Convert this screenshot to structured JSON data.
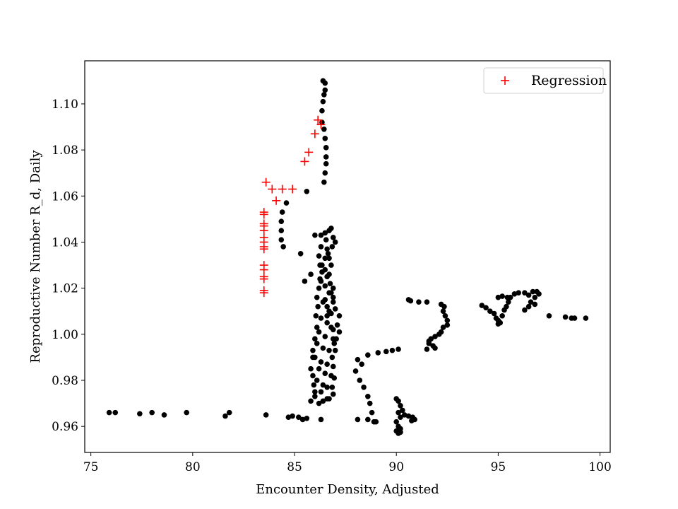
{
  "chart_data": {
    "type": "scatter",
    "title": "",
    "xlabel": "Encounter Density, Adjusted",
    "ylabel": "Reproductive Number R_d, Daily",
    "xlim": [
      74.7,
      100.5
    ],
    "ylim": [
      0.9487,
      1.1187
    ],
    "xticks": [
      75,
      80,
      85,
      90,
      95,
      100
    ],
    "yticks": [
      0.96,
      0.98,
      1.0,
      1.02,
      1.04,
      1.06,
      1.08,
      1.1
    ],
    "grid": false,
    "legend_position": "top-right",
    "series": [
      {
        "name": "Regression",
        "marker": "plus",
        "color": "#ff0000",
        "points": [
          [
            83.5,
            1.018
          ],
          [
            83.5,
            1.019
          ],
          [
            83.5,
            1.024
          ],
          [
            83.5,
            1.025
          ],
          [
            83.5,
            1.028
          ],
          [
            83.5,
            1.03
          ],
          [
            83.5,
            1.037
          ],
          [
            83.5,
            1.038
          ],
          [
            83.5,
            1.04
          ],
          [
            83.5,
            1.042
          ],
          [
            83.5,
            1.045
          ],
          [
            83.5,
            1.047
          ],
          [
            83.5,
            1.048
          ],
          [
            83.5,
            1.052
          ],
          [
            83.5,
            1.053
          ],
          [
            83.6,
            1.066
          ],
          [
            83.9,
            1.063
          ],
          [
            84.1,
            1.058
          ],
          [
            84.4,
            1.063
          ],
          [
            84.9,
            1.063
          ],
          [
            85.5,
            1.075
          ],
          [
            85.7,
            1.079
          ],
          [
            86.0,
            1.087
          ],
          [
            86.15,
            1.093
          ],
          [
            86.3,
            1.091
          ]
        ]
      },
      {
        "name": "",
        "marker": "dot",
        "color": "#000000",
        "points": [
          [
            75.9,
            0.966
          ],
          [
            76.2,
            0.966
          ],
          [
            77.4,
            0.9655
          ],
          [
            78.0,
            0.966
          ],
          [
            78.6,
            0.965
          ],
          [
            79.7,
            0.966
          ],
          [
            81.6,
            0.9645
          ],
          [
            81.8,
            0.966
          ],
          [
            83.6,
            0.965
          ],
          [
            84.7,
            0.964
          ],
          [
            84.9,
            0.9645
          ],
          [
            85.2,
            0.964
          ],
          [
            85.4,
            0.963
          ],
          [
            85.6,
            0.9635
          ],
          [
            86.3,
            0.963
          ],
          [
            86.4,
            1.11
          ],
          [
            86.5,
            1.109
          ],
          [
            86.5,
            1.106
          ],
          [
            86.45,
            1.104
          ],
          [
            86.4,
            1.101
          ],
          [
            86.35,
            1.097
          ],
          [
            86.35,
            1.092
          ],
          [
            86.45,
            1.089
          ],
          [
            86.5,
            1.085
          ],
          [
            86.55,
            1.081
          ],
          [
            86.55,
            1.077
          ],
          [
            86.55,
            1.074
          ],
          [
            86.5,
            1.07
          ],
          [
            86.45,
            1.066
          ],
          [
            85.6,
            1.062
          ],
          [
            84.6,
            1.057
          ],
          [
            84.4,
            1.053
          ],
          [
            84.35,
            1.049
          ],
          [
            84.35,
            1.045
          ],
          [
            84.35,
            1.041
          ],
          [
            84.45,
            1.038
          ],
          [
            85.3,
            1.035
          ],
          [
            85.5,
            1.023
          ],
          [
            85.8,
            1.026
          ],
          [
            86.0,
            1.043
          ],
          [
            86.3,
            1.043
          ],
          [
            86.5,
            1.044
          ],
          [
            86.7,
            1.045
          ],
          [
            86.8,
            1.046
          ],
          [
            86.55,
            1.041
          ],
          [
            86.6,
            1.037
          ],
          [
            86.5,
            1.033
          ],
          [
            86.65,
            1.035
          ],
          [
            86.35,
            1.03
          ],
          [
            86.5,
            1.028
          ],
          [
            86.25,
            1.024
          ],
          [
            86.6,
            1.025
          ],
          [
            86.5,
            1.021
          ],
          [
            86.7,
            1.018
          ],
          [
            86.4,
            1.014
          ],
          [
            86.6,
            1.012
          ],
          [
            86.8,
            1.009
          ],
          [
            86.3,
            1.007
          ],
          [
            86.6,
            1.005
          ],
          [
            86.8,
            1.003
          ],
          [
            86.2,
            1.001
          ],
          [
            86.5,
            0.999
          ],
          [
            86.9,
            0.998
          ],
          [
            86.1,
            0.996
          ],
          [
            86.4,
            0.994
          ],
          [
            86.7,
            0.993
          ],
          [
            86.0,
            0.99
          ],
          [
            86.3,
            0.988
          ],
          [
            86.6,
            0.987
          ],
          [
            86.2,
            0.985
          ],
          [
            86.5,
            0.983
          ],
          [
            86.8,
            0.982
          ],
          [
            86.1,
            0.98
          ],
          [
            86.4,
            0.978
          ],
          [
            86.6,
            0.977
          ],
          [
            86.3,
            0.975
          ],
          [
            86.0,
            0.973
          ],
          [
            86.6,
            0.972
          ],
          [
            86.4,
            0.971
          ],
          [
            86.2,
            0.97
          ],
          [
            85.9,
            0.993
          ],
          [
            86.0,
            0.998
          ],
          [
            86.1,
            1.003
          ],
          [
            86.05,
            1.008
          ],
          [
            86.15,
            1.012
          ],
          [
            86.1,
            1.016
          ],
          [
            86.2,
            1.02
          ],
          [
            86.3,
            1.023
          ],
          [
            86.35,
            1.027
          ],
          [
            86.25,
            1.03
          ],
          [
            86.2,
            1.034
          ],
          [
            86.3,
            1.038
          ],
          [
            85.9,
            0.99
          ],
          [
            85.8,
            0.985
          ],
          [
            85.9,
            0.982
          ],
          [
            85.95,
            0.978
          ],
          [
            86.0,
            0.975
          ],
          [
            85.8,
            0.971
          ],
          [
            86.9,
            1.014
          ],
          [
            87.0,
            1.011
          ],
          [
            87.2,
            1.008
          ],
          [
            87.1,
            1.004
          ],
          [
            86.9,
            1.002
          ],
          [
            87.2,
            1.001
          ],
          [
            87.05,
            0.998
          ],
          [
            86.95,
            0.996
          ],
          [
            87.0,
            0.993
          ],
          [
            86.85,
            0.99
          ],
          [
            86.9,
            0.986
          ],
          [
            86.95,
            0.981
          ],
          [
            86.85,
            0.977
          ],
          [
            86.9,
            0.974
          ],
          [
            86.7,
            0.972
          ],
          [
            86.8,
            1.018
          ],
          [
            86.75,
            1.022
          ],
          [
            86.9,
            1.016
          ],
          [
            86.7,
            1.026
          ],
          [
            86.8,
            1.03
          ],
          [
            86.7,
            1.033
          ],
          [
            86.85,
            1.038
          ],
          [
            86.9,
            1.042
          ],
          [
            87.0,
            1.04
          ],
          [
            86.6,
            1.008
          ],
          [
            86.7,
            1.01
          ],
          [
            86.5,
            1.015
          ],
          [
            86.9,
            1.02
          ],
          [
            88.1,
            0.989
          ],
          [
            88.3,
            0.987
          ],
          [
            88.0,
            0.984
          ],
          [
            88.2,
            0.98
          ],
          [
            88.4,
            0.977
          ],
          [
            88.6,
            0.973
          ],
          [
            88.7,
            0.97
          ],
          [
            88.8,
            0.966
          ],
          [
            88.6,
            0.963
          ],
          [
            88.1,
            0.963
          ],
          [
            89.0,
            0.962
          ],
          [
            88.9,
            0.962
          ],
          [
            88.6,
            0.991
          ],
          [
            89.1,
            0.992
          ],
          [
            89.5,
            0.9925
          ],
          [
            89.8,
            0.993
          ],
          [
            90.1,
            0.9935
          ],
          [
            90.0,
            0.972
          ],
          [
            90.1,
            0.971
          ],
          [
            90.2,
            0.969
          ],
          [
            90.3,
            0.967
          ],
          [
            90.1,
            0.966
          ],
          [
            90.4,
            0.965
          ],
          [
            90.6,
            0.9645
          ],
          [
            90.8,
            0.964
          ],
          [
            90.9,
            0.963
          ],
          [
            90.75,
            0.9625
          ],
          [
            90.2,
            0.964
          ],
          [
            90.0,
            0.962
          ],
          [
            90.1,
            0.96
          ],
          [
            90.0,
            0.958
          ],
          [
            90.2,
            0.9575
          ],
          [
            90.1,
            0.957
          ],
          [
            90.2,
            0.959
          ],
          [
            90.6,
            1.015
          ],
          [
            90.7,
            1.0145
          ],
          [
            91.1,
            1.014
          ],
          [
            91.5,
            1.014
          ],
          [
            92.2,
            1.013
          ],
          [
            92.35,
            1.012
          ],
          [
            92.3,
            1.01
          ],
          [
            92.4,
            1.008
          ],
          [
            92.5,
            1.006
          ],
          [
            92.5,
            1.004
          ],
          [
            92.3,
            1.003
          ],
          [
            92.2,
            1.001
          ],
          [
            92.1,
            1.0
          ],
          [
            91.9,
            0.999
          ],
          [
            91.7,
            0.998
          ],
          [
            91.6,
            0.997
          ],
          [
            91.6,
            0.996
          ],
          [
            91.8,
            0.995
          ],
          [
            91.9,
            0.994
          ],
          [
            91.5,
            0.9935
          ],
          [
            94.2,
            1.0125
          ],
          [
            94.4,
            1.0115
          ],
          [
            94.6,
            1.01
          ],
          [
            94.8,
            1.009
          ],
          [
            94.9,
            1.007
          ],
          [
            95.0,
            1.006
          ],
          [
            95.1,
            1.005
          ],
          [
            95.0,
            1.0045
          ],
          [
            95.2,
            1.008
          ],
          [
            95.3,
            1.0105
          ],
          [
            95.4,
            1.012
          ],
          [
            95.5,
            1.014
          ],
          [
            95.6,
            1.016
          ],
          [
            95.0,
            1.016
          ],
          [
            95.2,
            1.0165
          ],
          [
            95.45,
            1.016
          ],
          [
            95.8,
            1.0175
          ],
          [
            96.0,
            1.018
          ],
          [
            96.3,
            1.018
          ],
          [
            96.7,
            1.0185
          ],
          [
            96.9,
            1.0185
          ],
          [
            97.0,
            1.0175
          ],
          [
            96.8,
            1.016
          ],
          [
            96.6,
            1.014
          ],
          [
            96.5,
            1.012
          ],
          [
            96.3,
            1.0105
          ],
          [
            96.8,
            1.013
          ],
          [
            96.5,
            1.017
          ],
          [
            97.5,
            1.008
          ],
          [
            98.3,
            1.0075
          ],
          [
            98.6,
            1.007
          ],
          [
            98.75,
            1.007
          ],
          [
            99.3,
            1.007
          ]
        ]
      }
    ]
  }
}
